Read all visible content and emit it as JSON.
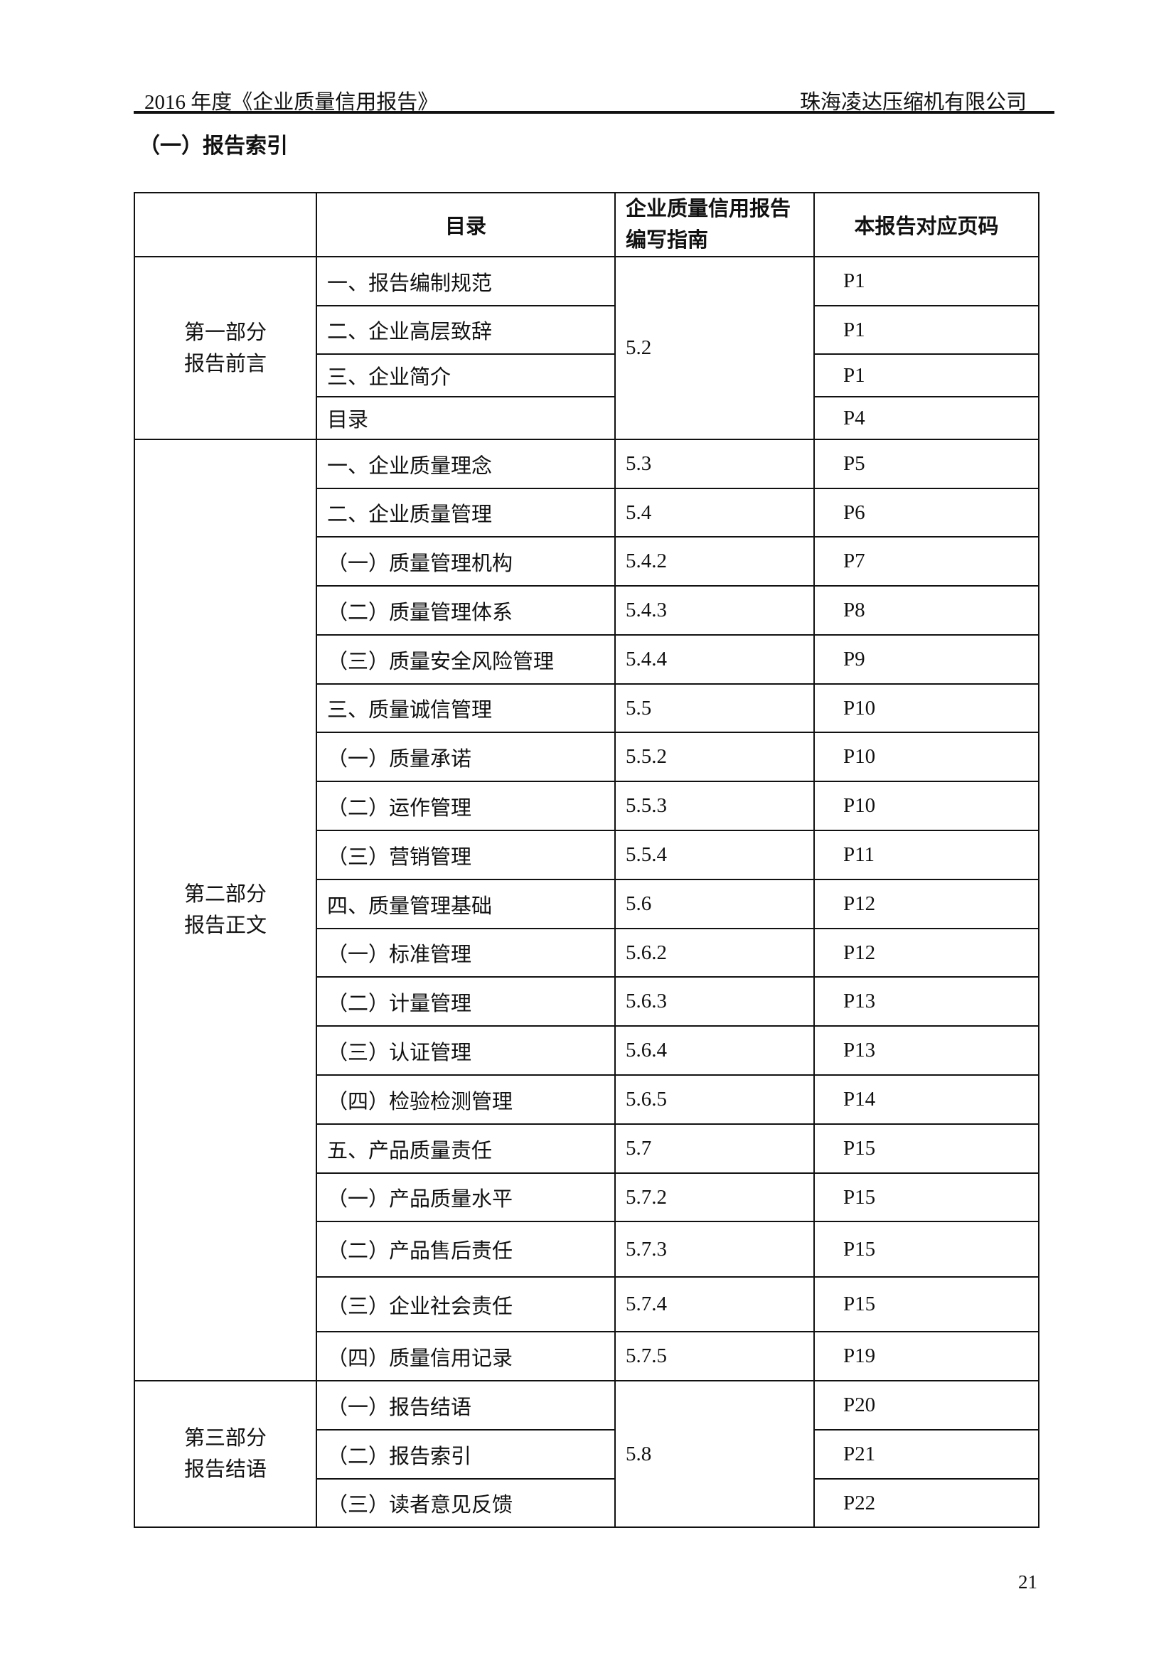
{
  "header": {
    "left": "2016 年度《企业质量信用报告》",
    "right": "珠海凌达压缩机有限公司"
  },
  "section_title": "（一）报告索引",
  "table": {
    "columns": [
      "",
      "目录",
      "企业质量信用报告编写指南",
      "本报告对应页码"
    ],
    "parts": [
      {
        "label": [
          "第一部分",
          "报告前言"
        ],
        "merged_guide": "5.2",
        "rows": [
          {
            "item": "一、报告编制规范",
            "page": "P1"
          },
          {
            "item": "二、企业高层致辞",
            "page": "P1"
          },
          {
            "item": "三、企业简介",
            "page": "P1"
          },
          {
            "item": "目录",
            "page": "P4"
          }
        ]
      },
      {
        "label": [
          "第二部分",
          "报告正文"
        ],
        "rows": [
          {
            "item": "一、企业质量理念",
            "guide": "5.3",
            "page": "P5"
          },
          {
            "item": "二、企业质量管理",
            "guide": "5.4",
            "page": "P6"
          },
          {
            "item": "（一）质量管理机构",
            "guide": "5.4.2",
            "page": "P7"
          },
          {
            "item": "（二）质量管理体系",
            "guide": "5.4.3",
            "page": "P8"
          },
          {
            "item": "（三）质量安全风险管理",
            "guide": "5.4.4",
            "page": "P9"
          },
          {
            "item": "三、质量诚信管理",
            "guide": "5.5",
            "page": "P10"
          },
          {
            "item": "（一）质量承诺",
            "guide": "5.5.2",
            "page": "P10"
          },
          {
            "item": "（二）运作管理",
            "guide": "5.5.3",
            "page": "P10"
          },
          {
            "item": "（三）营销管理",
            "guide": "5.5.4",
            "page": "P11"
          },
          {
            "item": "四、质量管理基础",
            "guide": "5.6",
            "page": "P12"
          },
          {
            "item": "（一）标准管理",
            "guide": "5.6.2",
            "page": "P12"
          },
          {
            "item": "（二）计量管理",
            "guide": "5.6.3",
            "page": "P13"
          },
          {
            "item": "（三）认证管理",
            "guide": "5.6.4",
            "page": "P13"
          },
          {
            "item": "（四）检验检测管理",
            "guide": "5.6.5",
            "page": "P14"
          },
          {
            "item": "五、产品质量责任",
            "guide": "5.7",
            "page": "P15"
          },
          {
            "item": "（一）产品质量水平",
            "guide": "5.7.2",
            "page": "P15"
          },
          {
            "item": "（二）产品售后责任",
            "guide": "5.7.3",
            "page": "P15"
          },
          {
            "item": "（三）企业社会责任",
            "guide": "5.7.4",
            "page": "P15"
          },
          {
            "item": "（四）质量信用记录",
            "guide": "5.7.5",
            "page": "P19"
          }
        ]
      },
      {
        "label": [
          "第三部分",
          "报告结语"
        ],
        "merged_guide": "5.8",
        "rows": [
          {
            "item": "（一）报告结语",
            "page": "P20"
          },
          {
            "item": "（二）报告索引",
            "page": "P21"
          },
          {
            "item": "（三）读者意见反馈",
            "page": "P22"
          }
        ]
      }
    ]
  },
  "page_number": "21"
}
